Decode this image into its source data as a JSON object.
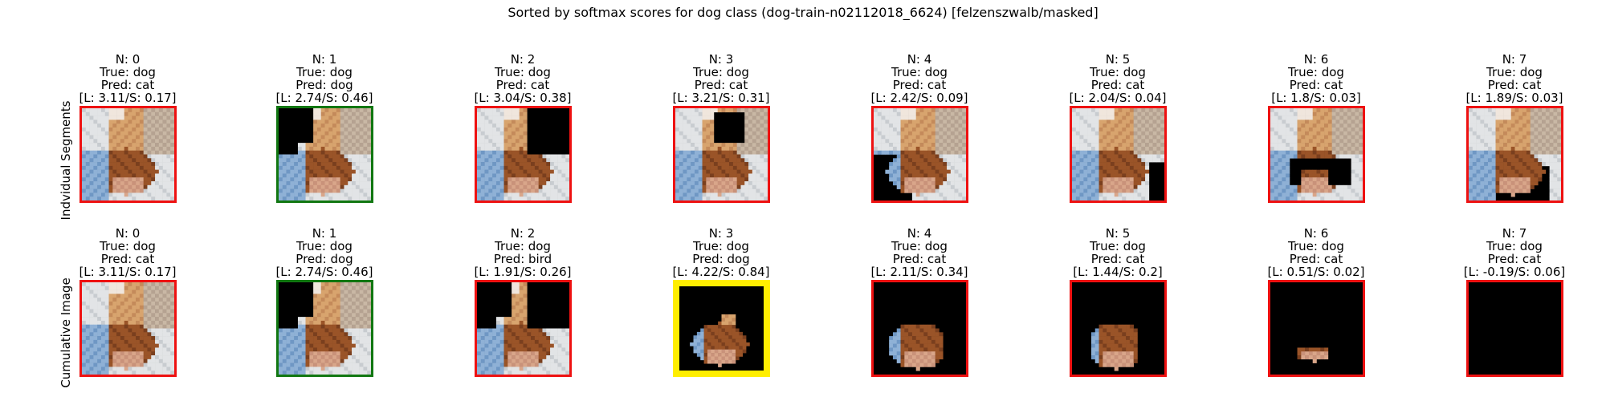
{
  "figure": {
    "title": "Sorted by softmax scores for dog class (dog-train-n02112018_6624) [felzenszwalb/masked]"
  },
  "rows": [
    {
      "label": "Indvidual Segments",
      "panels": [
        {
          "n": "N: 0",
          "true": "True: dog",
          "pred": "Pred: cat",
          "scores": "[L: 3.11/S: 0.17]",
          "border_color": "#ee1111",
          "mask": "none"
        },
        {
          "n": "N: 1",
          "true": "True: dog",
          "pred": "Pred: dog",
          "scores": "[L: 2.74/S: 0.46]",
          "border_color": "#117711",
          "mask": "seg1"
        },
        {
          "n": "N: 2",
          "true": "True: dog",
          "pred": "Pred: cat",
          "scores": "[L: 3.04/S: 0.38]",
          "border_color": "#ee1111",
          "mask": "seg2"
        },
        {
          "n": "N: 3",
          "true": "True: dog",
          "pred": "Pred: cat",
          "scores": "[L: 3.21/S: 0.31]",
          "border_color": "#ee1111",
          "mask": "seg3"
        },
        {
          "n": "N: 4",
          "true": "True: dog",
          "pred": "Pred: cat",
          "scores": "[L: 2.42/S: 0.09]",
          "border_color": "#ee1111",
          "mask": "seg4"
        },
        {
          "n": "N: 5",
          "true": "True: dog",
          "pred": "Pred: cat",
          "scores": "[L: 2.04/S: 0.04]",
          "border_color": "#ee1111",
          "mask": "seg5"
        },
        {
          "n": "N: 6",
          "true": "True: dog",
          "pred": "Pred: cat",
          "scores": "[L: 1.8/S: 0.03]",
          "border_color": "#ee1111",
          "mask": "seg6"
        },
        {
          "n": "N: 7",
          "true": "True: dog",
          "pred": "Pred: cat",
          "scores": "[L: 1.89/S: 0.03]",
          "border_color": "#ee1111",
          "mask": "seg7"
        }
      ]
    },
    {
      "label": "Cumulative Image",
      "panels": [
        {
          "n": "N: 0",
          "true": "True: dog",
          "pred": "Pred: cat",
          "scores": "[L: 3.11/S: 0.17]",
          "border_color": "#ee1111",
          "mask": "none"
        },
        {
          "n": "N: 1",
          "true": "True: dog",
          "pred": "Pred: dog",
          "scores": "[L: 2.74/S: 0.46]",
          "border_color": "#117711",
          "mask": "cum1"
        },
        {
          "n": "N: 2",
          "true": "True: dog",
          "pred": "Pred: bird",
          "scores": "[L: 1.91/S: 0.26]",
          "border_color": "#ee1111",
          "mask": "cum2"
        },
        {
          "n": "N: 3",
          "true": "True: dog",
          "pred": "Pred: dog",
          "scores": "[L: 4.22/S: 0.84]",
          "border_color": "#ffee00",
          "mask": "cum3"
        },
        {
          "n": "N: 4",
          "true": "True: dog",
          "pred": "Pred: cat",
          "scores": "[L: 2.11/S: 0.34]",
          "border_color": "#ee1111",
          "mask": "cum4"
        },
        {
          "n": "N: 5",
          "true": "True: dog",
          "pred": "Pred: cat",
          "scores": "[L: 1.44/S: 0.2]",
          "border_color": "#ee1111",
          "mask": "cum5"
        },
        {
          "n": "N: 6",
          "true": "True: dog",
          "pred": "Pred: cat",
          "scores": "[L: 0.51/S: 0.02]",
          "border_color": "#ee1111",
          "mask": "cum6"
        },
        {
          "n": "N: 7",
          "true": "True: dog",
          "pred": "Pred: cat",
          "scores": "[L: -0.19/S: 0.06]",
          "border_color": "#ee1111",
          "mask": "cum7"
        }
      ]
    }
  ]
}
